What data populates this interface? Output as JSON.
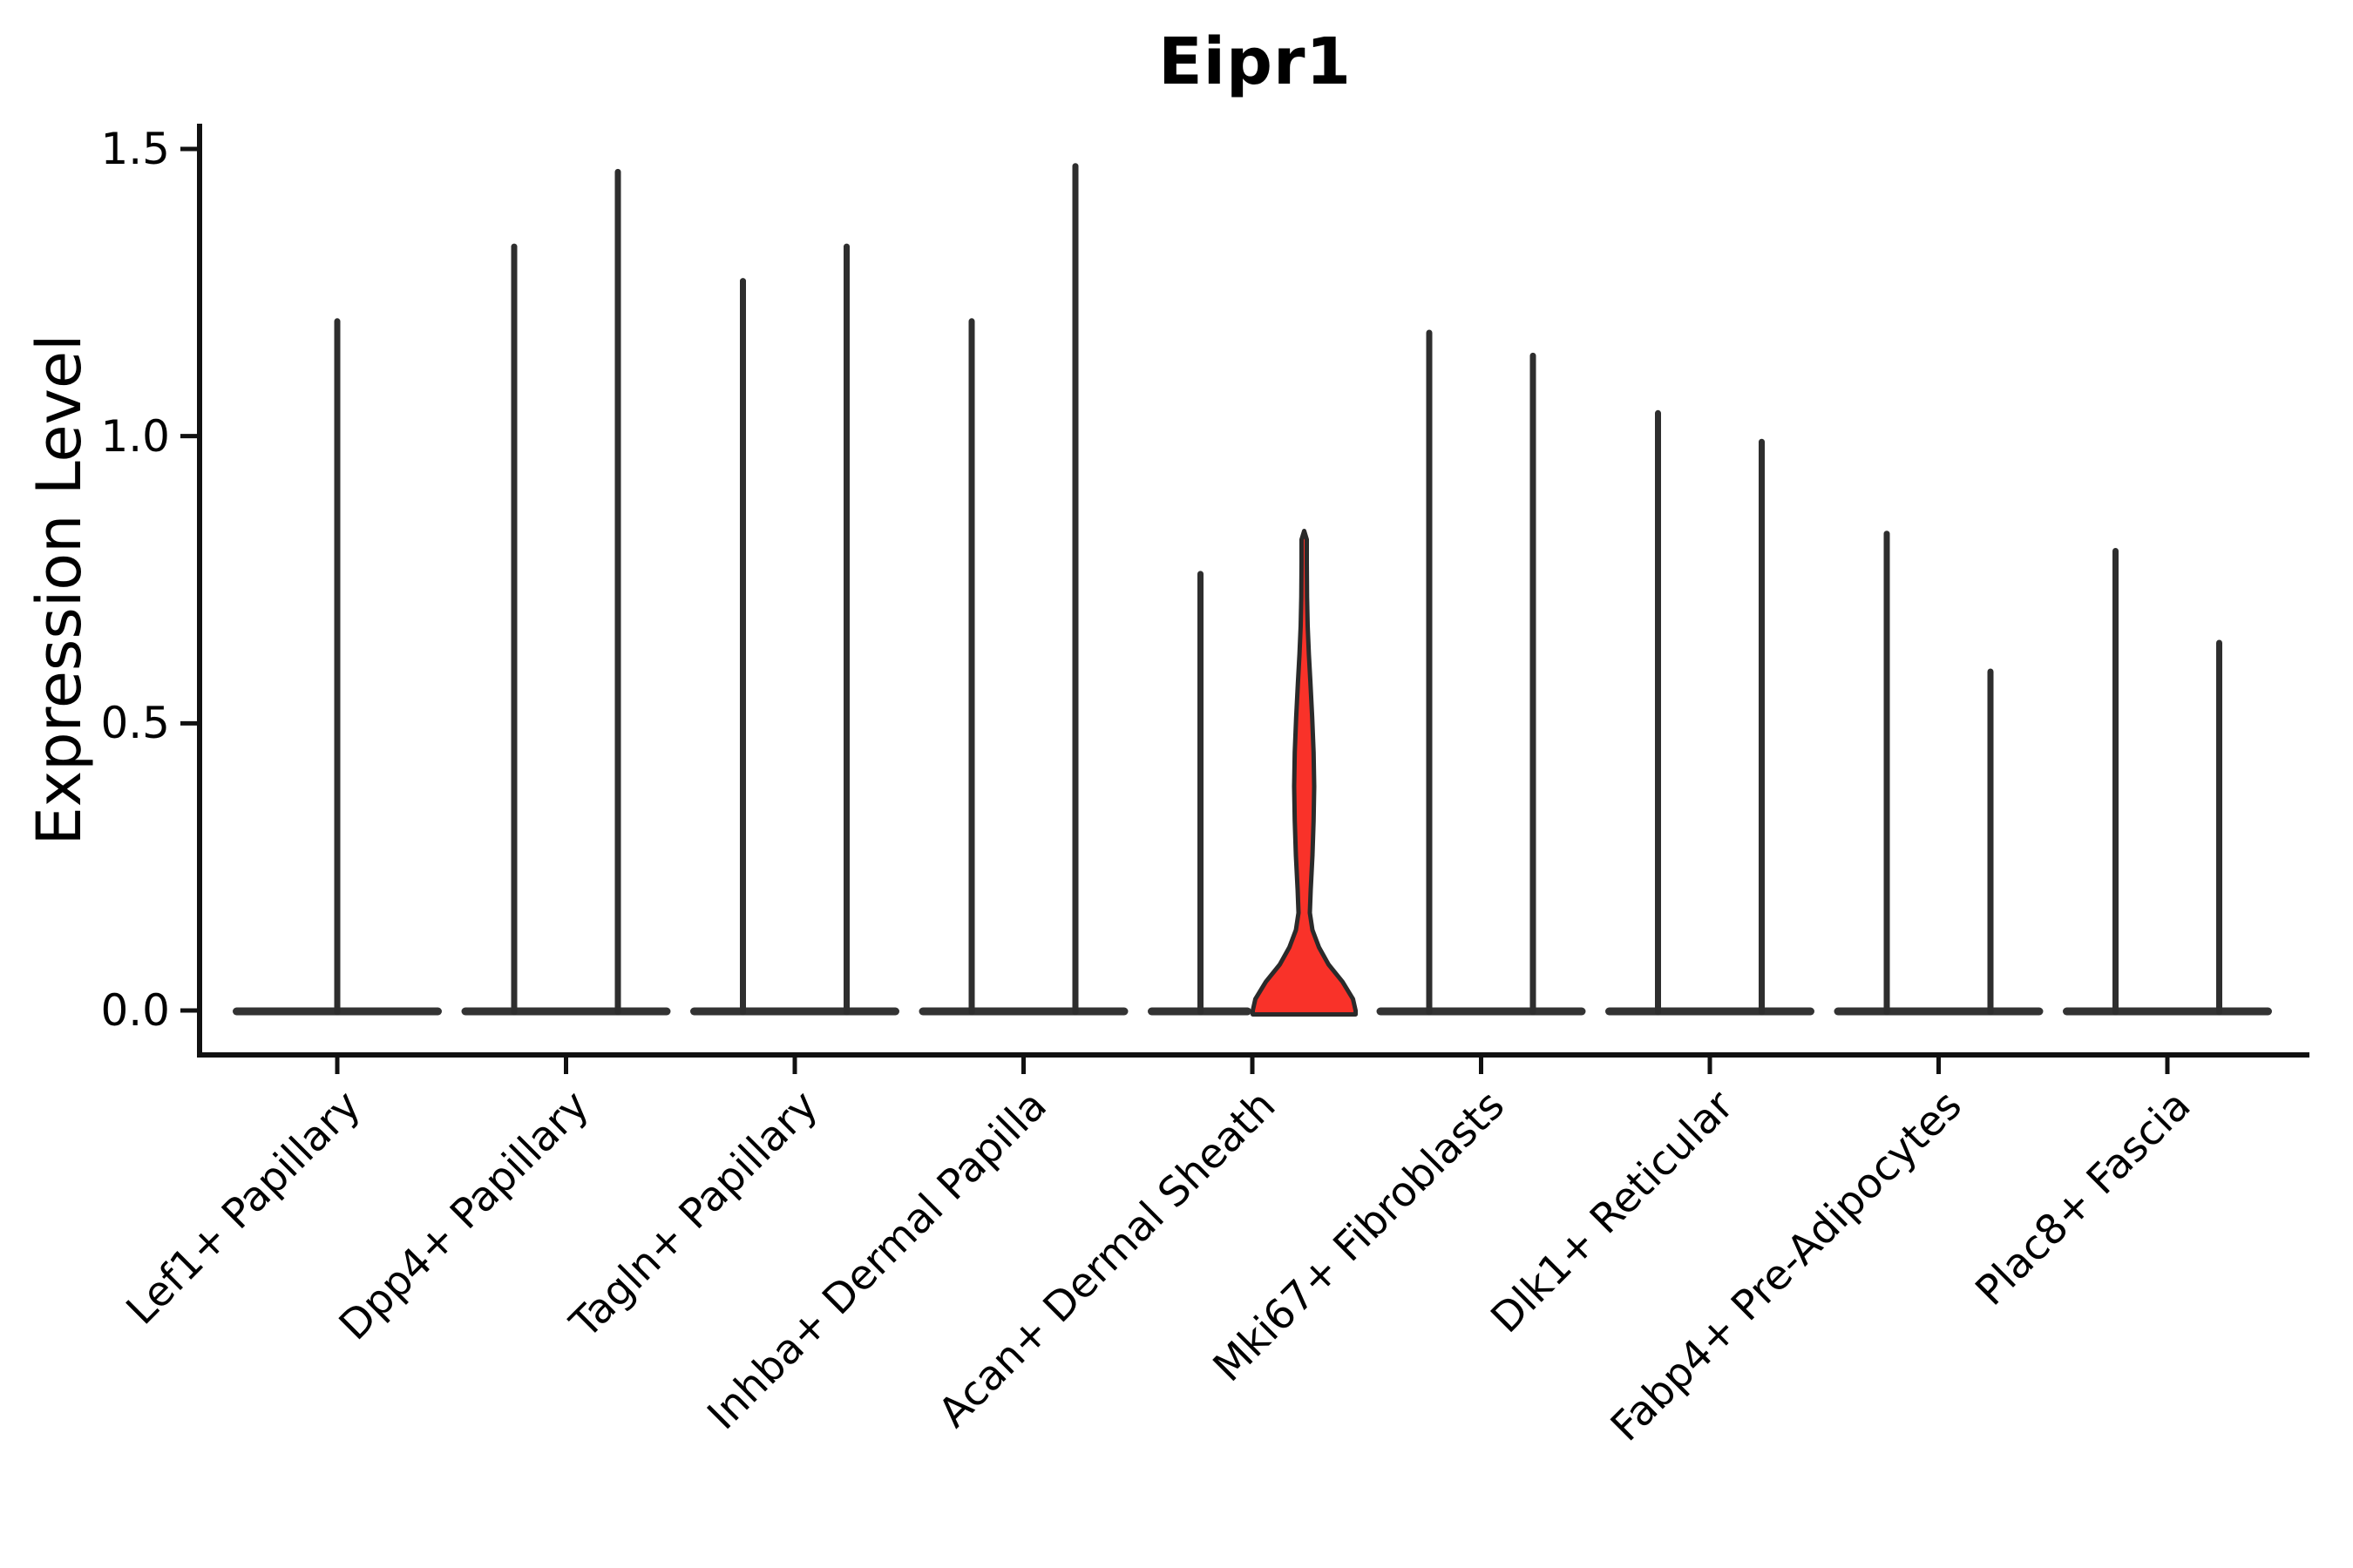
{
  "title": "Eipr1",
  "axes": {
    "ylabel": "Expression Level",
    "ytick_labels": [
      "0.0",
      "0.5",
      "1.0",
      "1.5"
    ],
    "ytick_values": [
      0.0,
      0.5,
      1.0,
      1.5
    ]
  },
  "chart_data": {
    "type": "violin",
    "title": "Eipr1",
    "xlabel": "",
    "ylabel": "Expression Level",
    "ylim": [
      0,
      1.5
    ],
    "yticks": [
      0.0,
      0.5,
      1.0,
      1.5
    ],
    "grid": false,
    "legend": "none",
    "categories": [
      "Lef1+ Papillary",
      "Dpp4+ Papillary",
      "Tagln+ Papillary",
      "Inhba+ Dermal Papilla",
      "Acan+ Dermal Sheath",
      "Mki67+ Fibroblasts",
      "Dlk1+ Reticular",
      "Fabp4+ Pre-Adipocytes",
      "Plac8+ Fascia"
    ],
    "description": "Violin plot of Eipr1 expression per fibroblast cluster. Most cells express 0 (wide flat base at y=0 with a thin spike to the max expressed value). Each category except the first shows two half-width violins; the right violin of 'Acan+ Dermal Sheath' is highlighted red with a visible density bulge.",
    "violins": [
      {
        "category_index": 0,
        "category": "Lef1+ Papillary",
        "position": "center",
        "max_expression": 1.2,
        "highlighted": false
      },
      {
        "category_index": 1,
        "category": "Dpp4+ Papillary",
        "position": "left",
        "max_expression": 1.33,
        "highlighted": false
      },
      {
        "category_index": 1,
        "category": "Dpp4+ Papillary",
        "position": "right",
        "max_expression": 1.46,
        "highlighted": false
      },
      {
        "category_index": 2,
        "category": "Tagln+ Papillary",
        "position": "left",
        "max_expression": 1.27,
        "highlighted": false
      },
      {
        "category_index": 2,
        "category": "Tagln+ Papillary",
        "position": "right",
        "max_expression": 1.33,
        "highlighted": false
      },
      {
        "category_index": 3,
        "category": "Inhba+ Dermal Papilla",
        "position": "left",
        "max_expression": 1.2,
        "highlighted": false
      },
      {
        "category_index": 3,
        "category": "Inhba+ Dermal Papilla",
        "position": "right",
        "max_expression": 1.47,
        "highlighted": false
      },
      {
        "category_index": 4,
        "category": "Acan+ Dermal Sheath",
        "position": "left",
        "max_expression": 0.76,
        "highlighted": false
      },
      {
        "category_index": 4,
        "category": "Acan+ Dermal Sheath",
        "position": "right",
        "max_expression": 0.83,
        "highlighted": true
      },
      {
        "category_index": 5,
        "category": "Mki67+ Fibroblasts",
        "position": "left",
        "max_expression": 1.18,
        "highlighted": false
      },
      {
        "category_index": 5,
        "category": "Mki67+ Fibroblasts",
        "position": "right",
        "max_expression": 1.14,
        "highlighted": false
      },
      {
        "category_index": 6,
        "category": "Dlk1+ Reticular",
        "position": "left",
        "max_expression": 1.04,
        "highlighted": false
      },
      {
        "category_index": 6,
        "category": "Dlk1+ Reticular",
        "position": "right",
        "max_expression": 0.99,
        "highlighted": false
      },
      {
        "category_index": 7,
        "category": "Fabp4+ Pre-Adipocytes",
        "position": "left",
        "max_expression": 0.83,
        "highlighted": false
      },
      {
        "category_index": 7,
        "category": "Fabp4+ Pre-Adipocytes",
        "position": "right",
        "max_expression": 0.59,
        "highlighted": false
      },
      {
        "category_index": 8,
        "category": "Plac8+ Fascia",
        "position": "left",
        "max_expression": 0.8,
        "highlighted": false
      },
      {
        "category_index": 8,
        "category": "Plac8+ Fascia",
        "position": "right",
        "max_expression": 0.64,
        "highlighted": false
      }
    ],
    "highlight_profile": [
      [
        0.0,
        59.0
      ],
      [
        0.02,
        56.0
      ],
      [
        0.05,
        44.0
      ],
      [
        0.08,
        28.0
      ],
      [
        0.11,
        17.0
      ],
      [
        0.14,
        9.5
      ],
      [
        0.17,
        6.5
      ],
      [
        0.21,
        7.5
      ],
      [
        0.27,
        9.5
      ],
      [
        0.33,
        10.8
      ],
      [
        0.39,
        11.5
      ],
      [
        0.45,
        10.8
      ],
      [
        0.51,
        9.2
      ],
      [
        0.57,
        7.2
      ],
      [
        0.62,
        5.4
      ],
      [
        0.67,
        4.0
      ],
      [
        0.72,
        3.3
      ],
      [
        0.78,
        3.0
      ],
      [
        0.82,
        3.0
      ]
    ],
    "highlight_top_value": 0.835,
    "colors": {
      "violin_line": "#2e2e2e",
      "violin_base": "#333333",
      "highlight_fill": "#f93229",
      "highlight_outline": "#2a2a2a",
      "axis": "#111111",
      "text": "#000000"
    }
  }
}
